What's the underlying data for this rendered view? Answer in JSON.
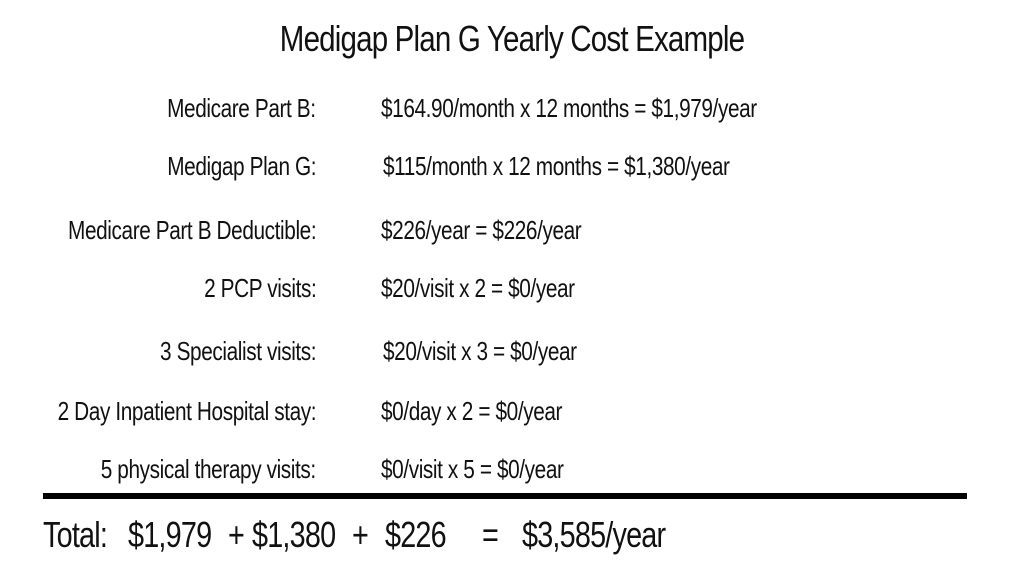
{
  "title": "Medigap Plan G Yearly Cost Example",
  "rows": [
    {
      "label": "Medicare Part B:",
      "value": "$164.90/month x 12 months = $1,979/year"
    },
    {
      "label": "Medigap Plan G:",
      "value": "$115/month x 12 months = $1,380/year"
    },
    {
      "label": "Medicare Part B Deductible:",
      "value": "$226/year = $226/year"
    },
    {
      "label": "2 PCP visits:",
      "value": "$20/visit x 2 = $0/year"
    },
    {
      "label": "3 Specialist visits:",
      "value": "$20/visit x 3 = $0/year"
    },
    {
      "label": "2 Day Inpatient Hospital stay:",
      "value": "$0/day x 2 = $0/year"
    },
    {
      "label": "5 physical therapy visits:",
      "value": "$0/visit x 5 = $0/year"
    }
  ],
  "total": {
    "label": "Total:",
    "part_b": "$1,979",
    "plus_1": "+",
    "plan_g": "$1,380",
    "plus_2": "+",
    "deductible": "$226",
    "equals": "=",
    "sum": "$3,585/year"
  }
}
